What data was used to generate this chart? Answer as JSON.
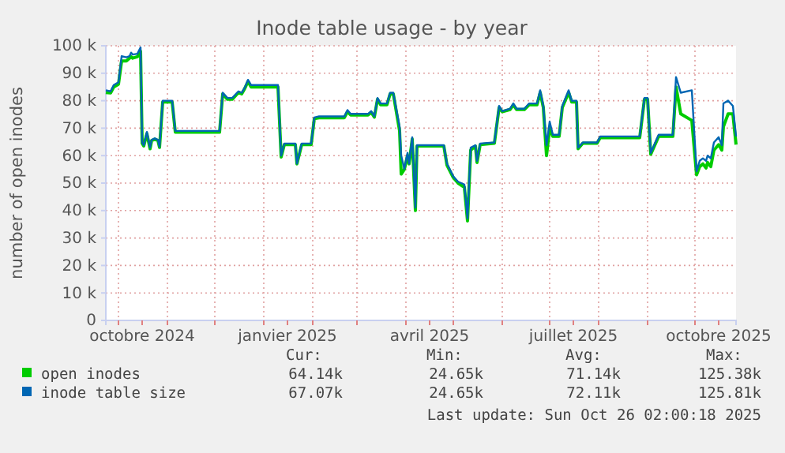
{
  "chart_data": {
    "type": "line",
    "title": "Inode table usage - by year",
    "ylabel": "number of open inodes",
    "x": [
      "2024-09-23",
      "2024-09-26",
      "2024-09-28",
      "2024-10-01",
      "2024-10-03",
      "2024-10-06",
      "2024-10-08",
      "2024-10-09",
      "2024-10-10",
      "2024-10-13",
      "2024-10-15",
      "2024-10-16",
      "2024-10-17",
      "2024-10-19",
      "2024-10-21",
      "2024-10-22",
      "2024-10-24",
      "2024-10-26",
      "2024-10-27",
      "2024-10-29",
      "2024-11-04",
      "2024-11-06",
      "2024-12-04",
      "2024-12-06",
      "2024-12-09",
      "2024-12-12",
      "2024-12-16",
      "2024-12-18",
      "2024-12-20",
      "2024-12-22",
      "2024-12-24",
      "2025-01-10",
      "2025-01-12",
      "2025-01-14",
      "2025-01-21",
      "2025-01-22",
      "2025-01-25",
      "2025-01-31",
      "2025-02-02",
      "2025-02-05",
      "2025-02-21",
      "2025-02-23",
      "2025-02-25",
      "2025-03-08",
      "2025-03-10",
      "2025-03-12",
      "2025-03-14",
      "2025-03-16",
      "2025-03-20",
      "2025-03-22",
      "2025-03-24",
      "2025-03-28",
      "2025-03-29",
      "2025-03-31",
      "2025-04-02",
      "2025-04-03",
      "2025-04-05",
      "2025-04-07",
      "2025-04-08",
      "2025-04-25",
      "2025-04-27",
      "2025-05-01",
      "2025-05-04",
      "2025-05-08",
      "2025-05-10",
      "2025-05-12",
      "2025-05-15",
      "2025-05-16",
      "2025-05-18",
      "2025-05-27",
      "2025-05-30",
      "2025-06-01",
      "2025-06-06",
      "2025-06-08",
      "2025-06-10",
      "2025-06-15",
      "2025-06-18",
      "2025-06-23",
      "2025-06-25",
      "2025-06-27",
      "2025-06-29",
      "2025-07-01",
      "2025-07-03",
      "2025-07-07",
      "2025-07-09",
      "2025-07-13",
      "2025-07-15",
      "2025-07-18",
      "2025-07-19",
      "2025-07-22",
      "2025-07-31",
      "2025-08-02",
      "2025-08-27",
      "2025-08-30",
      "2025-09-01",
      "2025-09-03",
      "2025-09-08",
      "2025-09-17",
      "2025-09-19",
      "2025-09-22",
      "2025-09-29",
      "2025-10-02",
      "2025-10-04",
      "2025-10-06",
      "2025-10-08",
      "2025-10-09",
      "2025-10-11",
      "2025-10-13",
      "2025-10-16",
      "2025-10-18",
      "2025-10-19",
      "2025-10-22",
      "2025-10-25",
      "2025-10-27"
    ],
    "series": [
      {
        "name": "open inodes",
        "color": "#00cc00",
        "values": [
          83000,
          82800,
          85000,
          86000,
          94500,
          94500,
          95500,
          96000,
          95500,
          96000,
          98000,
          64500,
          63500,
          68000,
          62500,
          65500,
          66000,
          65500,
          63000,
          79500,
          79500,
          68500,
          68500,
          82500,
          80500,
          80500,
          83000,
          82500,
          84500,
          87000,
          85000,
          85000,
          59500,
          64000,
          64000,
          57000,
          64000,
          64000,
          73500,
          73800,
          73800,
          76000,
          74800,
          74800,
          75800,
          74000,
          80500,
          78500,
          78500,
          82500,
          82500,
          69000,
          53300,
          55000,
          60000,
          57000,
          66000,
          40000,
          63500,
          63500,
          56500,
          52000,
          50000,
          48500,
          36200,
          62000,
          63500,
          57500,
          64000,
          64500,
          77500,
          76000,
          76800,
          78500,
          76800,
          76800,
          78500,
          78500,
          83000,
          77500,
          60000,
          70000,
          67000,
          67000,
          77500,
          83000,
          79500,
          79500,
          62500,
          64500,
          64500,
          66500,
          66500,
          80500,
          80500,
          60500,
          67000,
          67000,
          85000,
          75200,
          72800,
          53000,
          56000,
          57000,
          55500,
          57500,
          56000,
          62000,
          64000,
          62000,
          70500,
          75200,
          75200,
          64000
        ]
      },
      {
        "name": "inode table size",
        "color": "#0066b3",
        "values": [
          83800,
          83400,
          85700,
          86700,
          96200,
          95800,
          96200,
          97500,
          96800,
          97100,
          99400,
          64800,
          63800,
          68600,
          62900,
          65700,
          66300,
          65700,
          63200,
          80000,
          80000,
          69000,
          69000,
          82900,
          81000,
          81000,
          83400,
          82900,
          84800,
          87600,
          85700,
          85700,
          60000,
          64400,
          64400,
          57100,
          64400,
          64400,
          73900,
          74300,
          74300,
          76600,
          75200,
          75200,
          76200,
          74300,
          81000,
          79000,
          79000,
          82900,
          82900,
          70500,
          60000,
          55200,
          61000,
          57100,
          66700,
          41000,
          63800,
          63800,
          57100,
          52400,
          50500,
          49500,
          37100,
          62900,
          63800,
          58100,
          64400,
          64800,
          78100,
          76200,
          77100,
          79000,
          77100,
          77100,
          79000,
          79000,
          83800,
          78100,
          63800,
          72400,
          67600,
          67600,
          78100,
          83800,
          80000,
          80000,
          62900,
          64800,
          64800,
          67000,
          67000,
          81000,
          81000,
          61000,
          67600,
          67600,
          88600,
          82900,
          83800,
          54300,
          58100,
          59000,
          58100,
          60000,
          59000,
          64800,
          66700,
          63800,
          79000,
          80000,
          78100,
          67000
        ]
      }
    ],
    "xlim": [
      "2024-09-23",
      "2025-10-27"
    ],
    "xticks": [
      {
        "value": "2024-10-01",
        "label": null
      },
      {
        "value": "2024-10-16",
        "label": "octobre 2024"
      },
      {
        "value": "2024-11-01",
        "label": null
      },
      {
        "value": "2024-12-01",
        "label": null
      },
      {
        "value": "2025-01-01",
        "label": null
      },
      {
        "value": "2025-01-16",
        "label": "janvier 2025"
      },
      {
        "value": "2025-02-01",
        "label": null
      },
      {
        "value": "2025-03-01",
        "label": null
      },
      {
        "value": "2025-04-01",
        "label": null
      },
      {
        "value": "2025-04-16",
        "label": "avril 2025"
      },
      {
        "value": "2025-05-01",
        "label": null
      },
      {
        "value": "2025-06-01",
        "label": null
      },
      {
        "value": "2025-07-01",
        "label": null
      },
      {
        "value": "2025-07-16",
        "label": "juillet 2025"
      },
      {
        "value": "2025-08-01",
        "label": null
      },
      {
        "value": "2025-09-01",
        "label": null
      },
      {
        "value": "2025-10-01",
        "label": null
      },
      {
        "value": "2025-10-16",
        "label": "octobre 2025"
      }
    ],
    "ylim": [
      0,
      100000
    ],
    "yticks": [
      0,
      {
        "value": 10000,
        "label": "10 k"
      },
      {
        "value": 20000,
        "label": "20 k"
      },
      {
        "value": 30000,
        "label": "30 k"
      },
      {
        "value": 40000,
        "label": "40 k"
      },
      {
        "value": 50000,
        "label": "50 k"
      },
      {
        "value": 60000,
        "label": "60 k"
      },
      {
        "value": 70000,
        "label": "70 k"
      },
      {
        "value": 80000,
        "label": "80 k"
      },
      {
        "value": 90000,
        "label": "90 k"
      },
      {
        "value": 100000,
        "label": "100 k"
      }
    ],
    "grid": true,
    "legend": "bottom",
    "line_style": "solid",
    "annotations": [
      "Cur:",
      "Min:",
      "Avg:",
      "Max:",
      "64.14k",
      "24.65k",
      "71.14k",
      "125.38k",
      "67.07k",
      "24.65k",
      "72.11k",
      "125.81k",
      "Last update: Sun Oct 26 02:00:18 2025"
    ]
  }
}
